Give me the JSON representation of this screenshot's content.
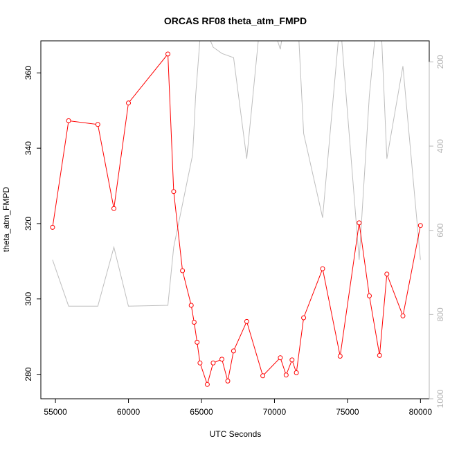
{
  "chart_data": {
    "type": "line",
    "title": "ORCAS RF08 theta_atm_FMPD",
    "xlabel": "UTC Seconds",
    "ylabel": "theta_atm_FMPD",
    "y2label": "",
    "xlim": [
      54000,
      80600
    ],
    "ylim": [
      273.5,
      368.5
    ],
    "y2lim": [
      1000,
      150
    ],
    "y2_reversed": true,
    "x_ticks": [
      55000,
      60000,
      65000,
      70000,
      75000,
      80000
    ],
    "y_ticks": [
      280,
      300,
      320,
      340,
      360
    ],
    "y2_ticks": [
      200,
      400,
      600,
      800,
      1000
    ],
    "grid": false,
    "colors": {
      "primary": "#ff0000",
      "secondary": "#bebebe",
      "axis": "#000000",
      "secondary_axis": "#b4b4b4"
    },
    "series": [
      {
        "axis": "left",
        "style": "line+points",
        "x": [
          54800,
          55900,
          57900,
          59000,
          60000,
          62700,
          63100,
          63700,
          64300,
          64500,
          64700,
          64900,
          65400,
          65800,
          66400,
          66800,
          67200,
          68100,
          69200,
          70400,
          70800,
          71200,
          71500,
          72000,
          73300,
          74500,
          75800,
          76500,
          77200,
          77700,
          78800,
          80000
        ],
        "y": [
          319,
          347.3,
          346.3,
          324,
          352,
          365,
          328.5,
          307.5,
          298.3,
          293.8,
          288.5,
          283,
          277.3,
          283,
          284,
          278.2,
          286.2,
          294,
          279.6,
          284.4,
          279.8,
          283.8,
          280.4,
          295,
          308,
          284.8,
          320.2,
          300.8,
          285,
          306.6,
          295.5,
          319.5
        ]
      },
      {
        "axis": "right",
        "style": "line",
        "x": [
          54800,
          55900,
          57900,
          59000,
          60000,
          62700,
          63100,
          64400,
          64600,
          65000,
          65800,
          66400,
          67200,
          68100,
          69200,
          70400,
          71000,
          71500,
          72000,
          73300,
          74500,
          75800,
          76500,
          77200,
          77700,
          78800,
          80000
        ],
        "y": [
          670,
          780,
          780,
          640,
          780,
          778,
          640,
          420,
          280,
          100,
          165,
          180,
          190,
          430,
          40,
          170,
          30,
          30,
          370,
          570,
          100,
          670,
          280,
          30,
          430,
          210,
          670
        ]
      }
    ]
  }
}
